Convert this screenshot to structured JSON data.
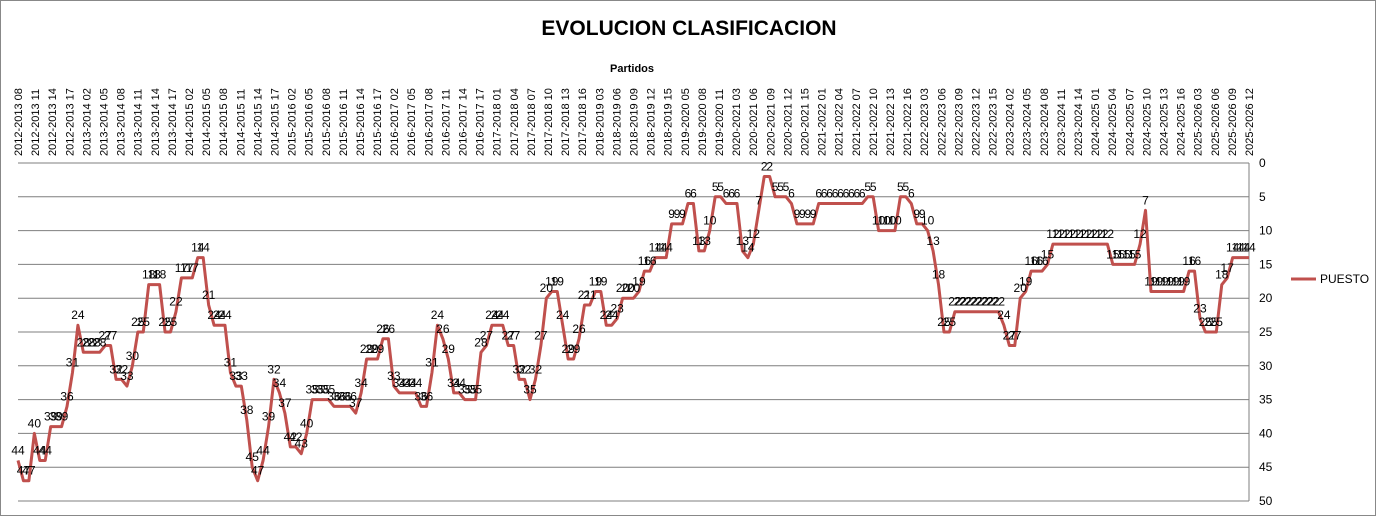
{
  "chart_data": {
    "type": "line",
    "title": "EVOLUCION CLASIFICACION",
    "xlabel": "Partidos",
    "ylabel": "",
    "ylim": [
      0,
      50
    ],
    "y_inverted": true,
    "y_ticks": [
      0,
      5,
      10,
      15,
      20,
      25,
      30,
      35,
      40,
      45,
      50
    ],
    "grid": true,
    "legend_position": "right",
    "series_color": "#c0504d",
    "x_tick_labels": [
      "2012-2013 08",
      "2012-2013 11",
      "2012-2013 14",
      "2012-2013 17",
      "2013-2014 02",
      "2013-2014 05",
      "2013-2014 08",
      "2013-2014 11",
      "2013-2014 14",
      "2013-2014 17",
      "2014-2015 02",
      "2014-2015 05",
      "2014-2015 08",
      "2014-2015 11",
      "2014-2015 14",
      "2014-2015 17",
      "2015-2016 02",
      "2015-2016 05",
      "2015-2016 08",
      "2015-2016 11",
      "2015-2016 14",
      "2015-2016 17",
      "2016-2017 02",
      "2016-2017 05",
      "2016-2017 08",
      "2016-2017 11",
      "2016-2017 14",
      "2016-2017 17",
      "2017-2018 01",
      "2017-2018 04",
      "2017-2018 07",
      "2017-2018 10",
      "2017-2018 13",
      "2017-2018 16",
      "2018-2019 03",
      "2018-2019 06",
      "2018-2019 09",
      "2018-2019 12",
      "2018-2019 15",
      "2019-2020 05",
      "2019-2020 08",
      "2019-2020 11",
      "2020-2021 03",
      "2020-2021 06",
      "2020-2021 09",
      "2020-2021 12",
      "2020-2021 15",
      "2021-2022 01",
      "2021-2022 04",
      "2021-2022 07",
      "2021-2022 10",
      "2021-2022 13",
      "2021-2022 16",
      "2022-2023 03",
      "2022-2023 06",
      "2022-2023 09",
      "2022-2023 12",
      "2022-2023 15",
      "2023-2024 02",
      "2023-2024 05",
      "2023-2024 08",
      "2023-2024 11",
      "2023-2024 14",
      "2024-2025 01",
      "2024-2025 04",
      "2024-2025 07",
      "2024-2025 10",
      "2024-2025 13",
      "2024-2025 16",
      "2025-2026 03",
      "2025-2026 06",
      "2025-2026 09",
      "2025-2026 12"
    ],
    "series": [
      {
        "name": "PUESTO",
        "values": [
          44,
          47,
          47,
          40,
          44,
          44,
          39,
          39,
          39,
          36,
          31,
          24,
          28,
          28,
          28,
          28,
          27,
          27,
          32,
          32,
          33,
          30,
          25,
          25,
          18,
          18,
          18,
          25,
          25,
          22,
          17,
          17,
          17,
          14,
          14,
          21,
          24,
          24,
          24,
          31,
          33,
          33,
          38,
          45,
          47,
          44,
          39,
          32,
          34,
          37,
          42,
          42,
          43,
          40,
          35,
          35,
          35,
          35,
          36,
          36,
          36,
          36,
          37,
          34,
          29,
          29,
          29,
          26,
          26,
          33,
          34,
          34,
          34,
          34,
          36,
          36,
          31,
          24,
          26,
          29,
          34,
          34,
          35,
          35,
          35,
          28,
          27,
          24,
          24,
          24,
          27,
          27,
          32,
          32,
          35,
          32,
          27,
          20,
          19,
          19,
          24,
          29,
          29,
          26,
          21,
          21,
          19,
          19,
          24,
          24,
          23,
          20,
          20,
          20,
          19,
          16,
          16,
          14,
          14,
          14,
          9,
          9,
          9,
          6,
          6,
          13,
          13,
          10,
          5,
          5,
          6,
          6,
          6,
          13,
          14,
          12,
          7,
          2,
          2,
          5,
          5,
          5,
          6,
          9,
          9,
          9,
          9,
          6,
          6,
          6,
          6,
          6,
          6,
          6,
          6,
          6,
          5,
          5,
          10,
          10,
          10,
          10,
          5,
          5,
          6,
          9,
          9,
          10,
          13,
          18,
          25,
          25,
          22,
          22,
          22,
          22,
          22,
          22,
          22,
          22,
          22,
          24,
          27,
          27,
          20,
          19,
          16,
          16,
          16,
          15,
          12,
          12,
          12,
          12,
          12,
          12,
          12,
          12,
          12,
          12,
          12,
          15,
          15,
          15,
          15,
          15,
          12,
          7,
          19,
          19,
          19,
          19,
          19,
          19,
          19,
          16,
          16,
          23,
          25,
          25,
          25,
          18,
          17,
          14,
          14,
          14,
          14
        ]
      }
    ]
  }
}
